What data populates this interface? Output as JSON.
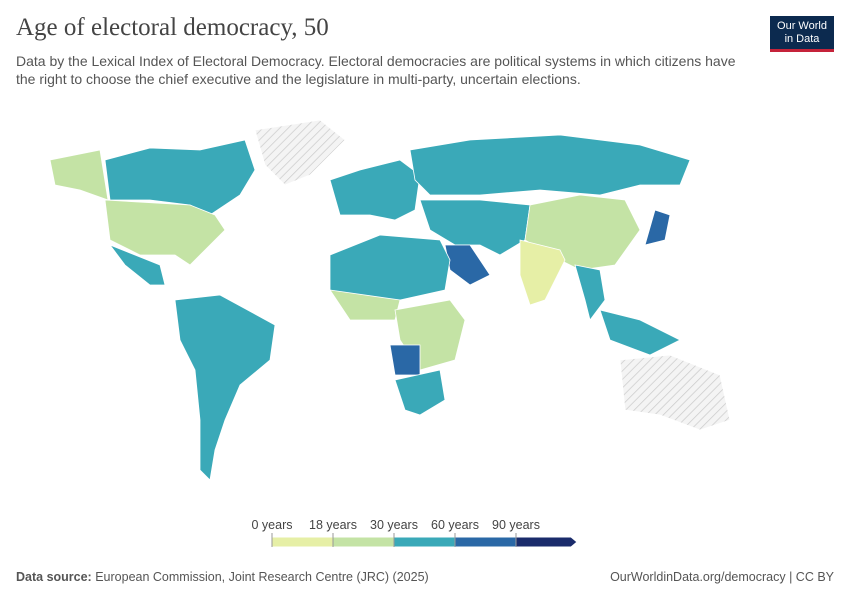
{
  "header": {
    "title": "Age of electoral democracy, 50",
    "subtitle": "Data by the Lexical Index of Electoral Democracy. Electoral democracies are political systems in which citizens have the right to choose the chief executive and the legislature in multi-party, uncertain elections."
  },
  "logo": {
    "line1": "Our World",
    "line2": "in Data"
  },
  "legend": {
    "labels": [
      "0 years",
      "18 years",
      "30 years",
      "60 years",
      "90 years"
    ],
    "colors": [
      "#e6efa6",
      "#c4e3a5",
      "#3aa9b8",
      "#2a68a6",
      "#1a2b6b"
    ]
  },
  "footer": {
    "source_label": "Data source:",
    "source": "European Commission, Joint Research Centre (JRC) (2025)",
    "url": "OurWorldinData.org/democracy | CC BY"
  }
}
